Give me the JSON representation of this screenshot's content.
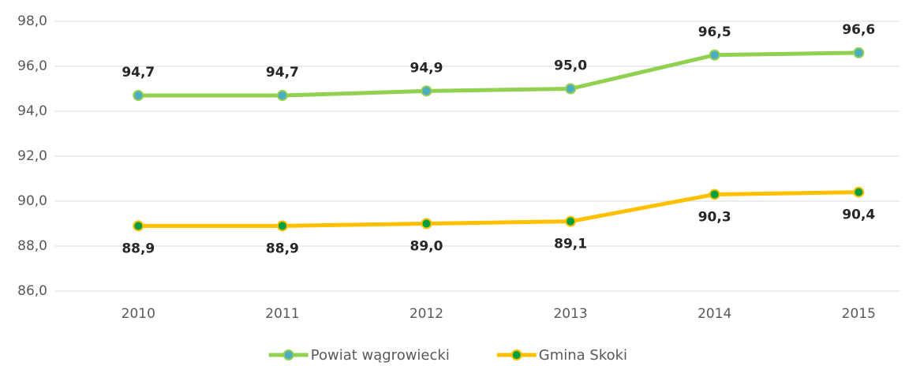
{
  "chart_data": {
    "type": "line",
    "categories": [
      "2010",
      "2011",
      "2012",
      "2013",
      "2014",
      "2015"
    ],
    "series": [
      {
        "name": "Powiat wągrowiecki",
        "color": "#92d050",
        "marker_color": "#4bacc6",
        "values": [
          94.7,
          94.7,
          94.9,
          95.0,
          96.5,
          96.6
        ],
        "value_labels": [
          "94,7",
          "94,7",
          "94,9",
          "95,0",
          "96,5",
          "96,6"
        ]
      },
      {
        "name": "Gmina Skoki",
        "color": "#ffc000",
        "marker_color": "#00a040",
        "values": [
          88.9,
          88.9,
          89.0,
          89.1,
          90.3,
          90.4
        ],
        "value_labels": [
          "88,9",
          "88,9",
          "89,0",
          "89,1",
          "90,3",
          "90,4"
        ]
      }
    ],
    "ylim": [
      86,
      98
    ],
    "yticks": [
      {
        "value": 86,
        "label": "86,0"
      },
      {
        "value": 88,
        "label": "88,0"
      },
      {
        "value": 90,
        "label": "90,0"
      },
      {
        "value": 92,
        "label": "92,0"
      },
      {
        "value": 94,
        "label": "94,0"
      },
      {
        "value": 96,
        "label": "96,0"
      },
      {
        "value": 98,
        "label": "98,0"
      }
    ],
    "grid": true
  }
}
